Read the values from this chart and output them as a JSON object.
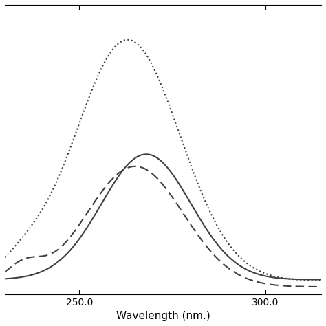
{
  "title": "",
  "xlabel": "Wavelength (nm.)",
  "ylabel": "",
  "xlim": [
    230,
    315
  ],
  "ylim": [
    -0.05,
    1.15
  ],
  "x_ticks": [
    250.0,
    300.0
  ],
  "background_color": "#ffffff",
  "peak_solid": 268,
  "peak_dashed": 265,
  "peak_dotted": 263,
  "sigma_solid": 12,
  "sigma_dashed": 13,
  "sigma_dotted": 14,
  "amp_solid": 0.52,
  "amp_dashed": 0.5,
  "amp_dotted": 1.0,
  "baseline_solid": 0.01,
  "baseline_dashed": -0.02,
  "baseline_dotted": 0.005,
  "line_color": "#404040",
  "line_width": 1.5
}
